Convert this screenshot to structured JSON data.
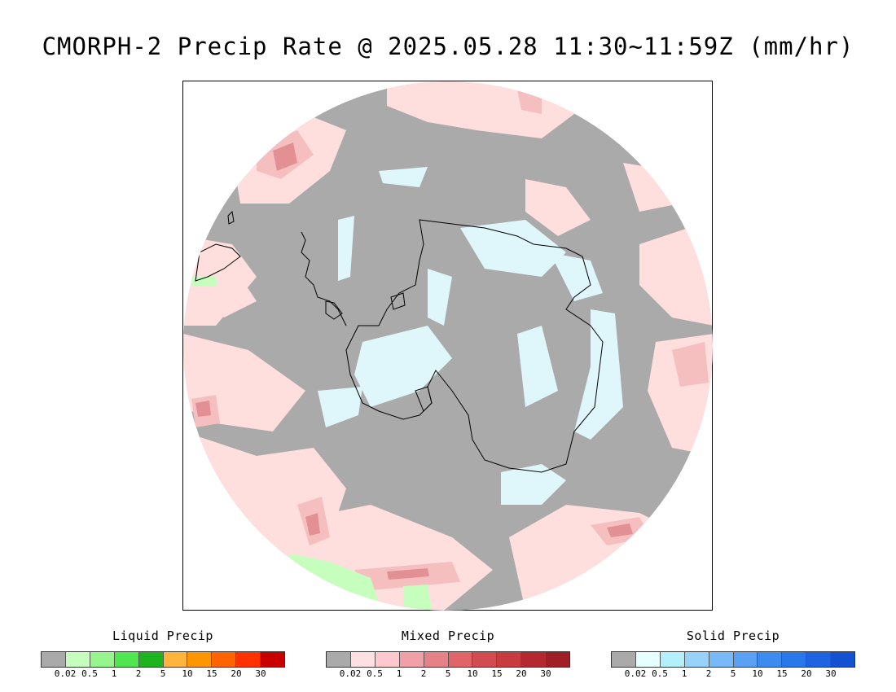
{
  "title": "CMORPH-2 Precip Rate @ 2025.05.28 11:30~11:59Z (mm/hr)",
  "map": {
    "projection": "south polar stereographic",
    "colors": {
      "no_precip": "#aaaaaa",
      "mixed_light": "#ffdede",
      "mixed_medium": "#f5bfc0",
      "mixed_heavy": "#e29094",
      "solid_light": "#dff7fb",
      "liquid_light": "#c6ffbd",
      "coastline": "#000000"
    }
  },
  "legends": [
    {
      "title": "Liquid Precip",
      "colors": [
        "#aaaaaa",
        "#c6ffbd",
        "#96f58c",
        "#50e650",
        "#1eb41e",
        "#ffb43c",
        "#ff9600",
        "#ff6400",
        "#ff3200",
        "#c80000"
      ],
      "ticks": [
        "0.02",
        "0.5",
        "1",
        "2",
        "5",
        "10",
        "15",
        "20",
        "30"
      ]
    },
    {
      "title": "Mixed Precip",
      "colors": [
        "#aaaaaa",
        "#ffe0e2",
        "#ffc8cc",
        "#f0a0a6",
        "#e68287",
        "#e06468",
        "#d24b50",
        "#c83c40",
        "#b42830",
        "#a01e25"
      ],
      "ticks": [
        "0.02",
        "0.5",
        "1",
        "2",
        "5",
        "10",
        "15",
        "20",
        "30"
      ]
    },
    {
      "title": "Solid Precip",
      "colors": [
        "#aaaaaa",
        "#e6ffff",
        "#b4f0fa",
        "#96d2fa",
        "#78b9fa",
        "#5aa0f5",
        "#3c8cf0",
        "#2878eb",
        "#1e64e1",
        "#1450d2"
      ],
      "ticks": [
        "0.02",
        "0.5",
        "1",
        "2",
        "5",
        "10",
        "15",
        "20",
        "30"
      ]
    }
  ]
}
